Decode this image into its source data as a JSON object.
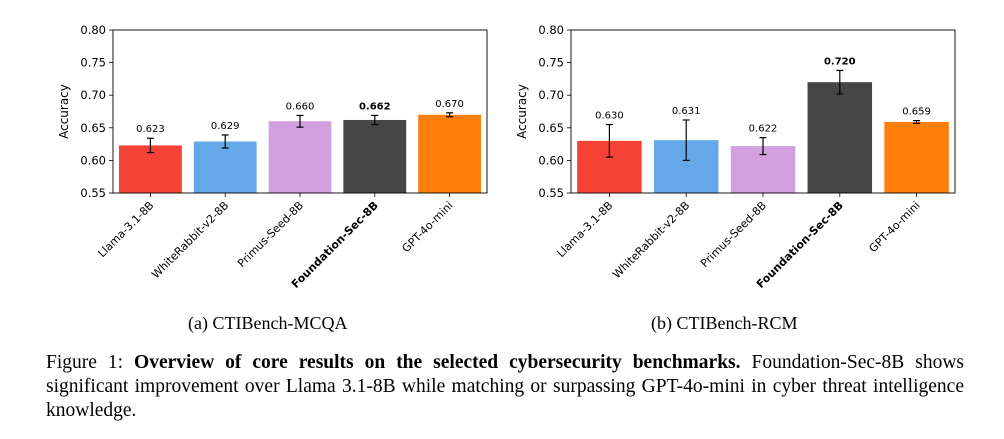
{
  "chart_data": [
    {
      "type": "bar",
      "title": "",
      "caption": "(a) CTIBench-MCQA",
      "xlabel": "",
      "ylabel": "Accuracy",
      "ylim": [
        0.55,
        0.8
      ],
      "yticks": [
        "0.55",
        "0.60",
        "0.65",
        "0.70",
        "0.75",
        "0.80"
      ],
      "categories": [
        "Llama-3.1-8B",
        "WhiteRabbit-v2-8B",
        "Primus-Seed-8B",
        "Foundation-Sec-8B",
        "GPT-4o-mini"
      ],
      "values": [
        0.623,
        0.629,
        0.66,
        0.662,
        0.67
      ],
      "value_labels": [
        "0.623",
        "0.629",
        "0.660",
        "0.662",
        "0.670"
      ],
      "errors": [
        0.011,
        0.01,
        0.009,
        0.007,
        0.003
      ],
      "highlight": "Foundation-Sec-8B",
      "colors": [
        "#f44336",
        "#64a8e8",
        "#d3a0df",
        "#464646",
        "#ff7f0e"
      ]
    },
    {
      "type": "bar",
      "title": "",
      "caption": "(b) CTIBench-RCM",
      "xlabel": "",
      "ylabel": "Accuracy",
      "ylim": [
        0.55,
        0.8
      ],
      "yticks": [
        "0.55",
        "0.60",
        "0.65",
        "0.70",
        "0.75",
        "0.80"
      ],
      "categories": [
        "Llama-3.1-8B",
        "WhiteRabbit-v2-8B",
        "Primus-Seed-8B",
        "Foundation-Sec-8B",
        "GPT-4o-mini"
      ],
      "values": [
        0.63,
        0.631,
        0.622,
        0.72,
        0.659
      ],
      "value_labels": [
        "0.630",
        "0.631",
        "0.622",
        "0.720",
        "0.659"
      ],
      "errors": [
        0.025,
        0.031,
        0.013,
        0.018,
        0.002
      ],
      "highlight": "Foundation-Sec-8B",
      "colors": [
        "#f44336",
        "#64a8e8",
        "#d3a0df",
        "#464646",
        "#ff7f0e"
      ]
    }
  ],
  "figure_caption": {
    "label": "Figure 1:",
    "bold": "Overview of core results on the selected cybersecurity benchmarks.",
    "rest": "Foundation-Sec-8B shows significant improvement over Llama 3.1-8B while matching or surpassing GPT-4o-mini in cyber threat intelligence knowledge."
  }
}
